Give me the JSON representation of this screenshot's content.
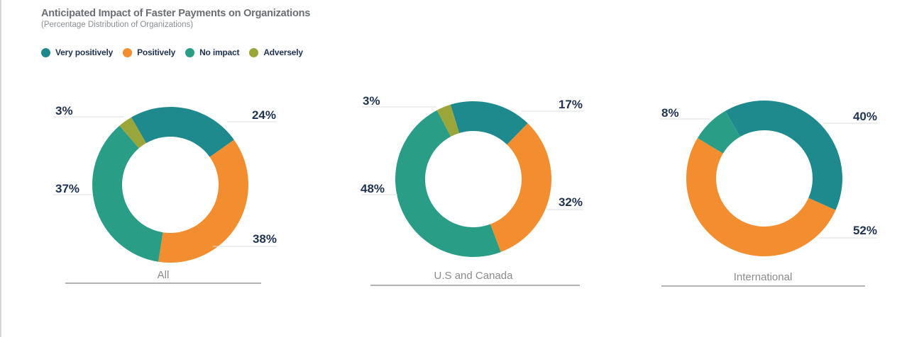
{
  "title": "Anticipated Impact of Faster Payments on Organizations",
  "subtitle": "(Percentage Distribution of Organizations)",
  "legend": [
    {
      "label": "Very positively",
      "color": "#1f8a8e"
    },
    {
      "label": "Positively",
      "color": "#f28e2f"
    },
    {
      "label": "No impact",
      "color": "#2a9d87"
    },
    {
      "label": "Adversely",
      "color": "#9aa53a"
    }
  ],
  "chart_data": [
    {
      "type": "pie",
      "title": "All",
      "categories": [
        "Very positively",
        "Positively",
        "No impact",
        "Adversely"
      ],
      "values": [
        24,
        38,
        37,
        3
      ],
      "labels": [
        "24%",
        "38%",
        "37%",
        "3%"
      ]
    },
    {
      "type": "pie",
      "title": "U.S and Canada",
      "categories": [
        "Very positively",
        "Positively",
        "No impact",
        "Adversely"
      ],
      "values": [
        17,
        32,
        48,
        3
      ],
      "labels": [
        "17%",
        "32%",
        "48%",
        "3%"
      ]
    },
    {
      "type": "pie",
      "title": "International",
      "categories": [
        "Very positively",
        "Positively",
        "No impact"
      ],
      "values": [
        40,
        52,
        8
      ],
      "labels": [
        "40%",
        "52%",
        "8%"
      ]
    }
  ]
}
